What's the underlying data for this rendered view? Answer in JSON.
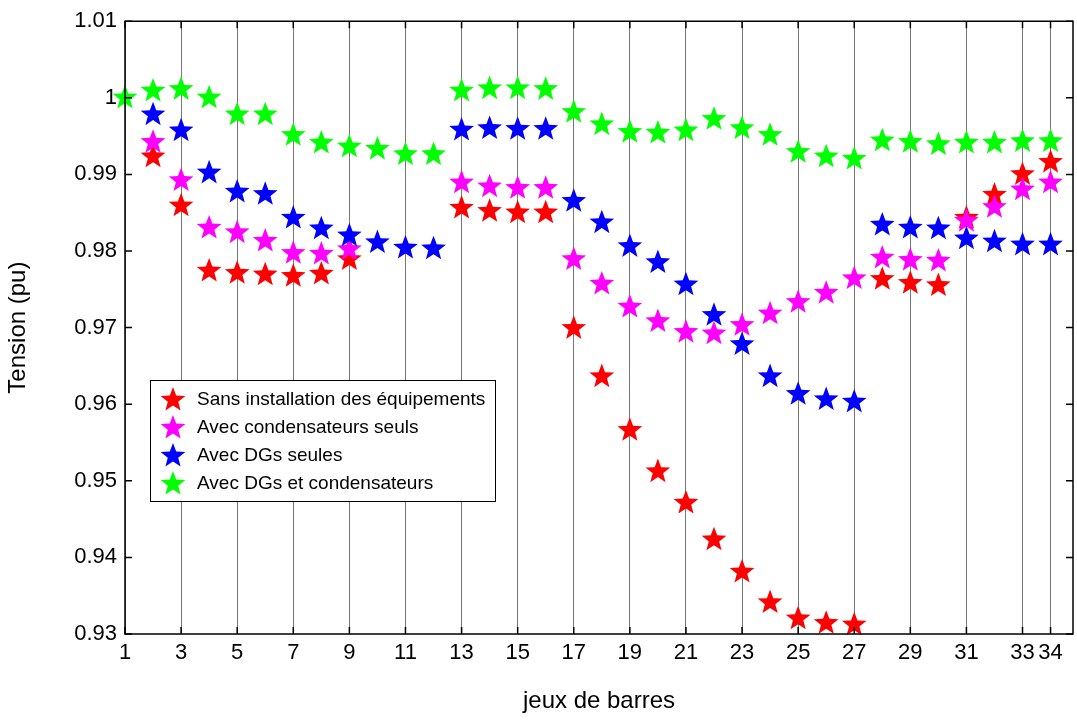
{
  "chart_data": {
    "type": "scatter",
    "xlabel": "jeux de barres",
    "ylabel": "Tension (pu)",
    "x": [
      1,
      2,
      3,
      4,
      5,
      6,
      7,
      8,
      9,
      10,
      11,
      12,
      13,
      14,
      15,
      16,
      17,
      18,
      19,
      20,
      21,
      22,
      23,
      24,
      25,
      26,
      27,
      28,
      29,
      30,
      31,
      32,
      33,
      34
    ],
    "series": [
      {
        "name": "Sans installation des équipements",
        "color": "#ff0000",
        "values": [
          null,
          0.9923,
          0.9859,
          0.9774,
          0.9771,
          0.9769,
          0.9767,
          0.977,
          0.9789,
          null,
          null,
          null,
          0.9856,
          0.9852,
          0.985,
          0.985,
          0.9699,
          0.9636,
          0.9566,
          0.9512,
          0.9471,
          0.9423,
          0.9381,
          0.9341,
          0.932,
          0.9314,
          0.9312,
          0.9763,
          0.9758,
          0.9755,
          0.9843,
          0.9873,
          0.99,
          0.9916
        ]
      },
      {
        "name": "Avec condensateurs seuls",
        "color": "#ff00ff",
        "values": [
          null,
          0.9942,
          0.9892,
          0.983,
          0.9824,
          0.9813,
          0.9797,
          0.9796,
          0.9802,
          null,
          null,
          null,
          0.9889,
          0.9884,
          0.9882,
          0.9882,
          0.9789,
          0.9757,
          0.9727,
          0.9708,
          0.9694,
          0.9692,
          0.9703,
          0.9718,
          0.9733,
          0.9745,
          0.9764,
          0.9791,
          0.9788,
          0.9787,
          0.9839,
          0.9857,
          0.988,
          0.9889
        ]
      },
      {
        "name": "Avec DGs seules",
        "color": "#0000ff",
        "values": [
          null,
          0.9978,
          0.9957,
          0.9902,
          0.9877,
          0.9874,
          0.9843,
          0.9829,
          0.982,
          0.9811,
          0.9804,
          0.9803,
          0.9958,
          0.996,
          0.9959,
          0.9959,
          0.9865,
          0.9837,
          0.9806,
          0.9785,
          0.9756,
          0.9716,
          0.9678,
          0.9636,
          0.9613,
          0.9606,
          0.9603,
          0.9834,
          0.983,
          0.9829,
          0.9816,
          0.9812,
          0.9808,
          0.9808
        ]
      },
      {
        "name": "Avec DGs et condensateurs",
        "color": "#00ff00",
        "values": [
          1.0,
          1.0009,
          1.0011,
          1.0,
          0.9978,
          0.9978,
          0.9951,
          0.9941,
          0.9936,
          0.9933,
          0.9926,
          0.9926,
          1.0009,
          1.0012,
          1.0012,
          1.0011,
          0.9981,
          0.9965,
          0.9955,
          0.9954,
          0.9957,
          0.9972,
          0.996,
          0.9951,
          0.9929,
          0.9923,
          0.992,
          0.9944,
          0.9942,
          0.9939,
          0.9941,
          0.9941,
          0.9943,
          0.9943
        ]
      }
    ],
    "xlim": [
      1,
      34.8
    ],
    "xticks": [
      1,
      3,
      5,
      7,
      9,
      11,
      13,
      15,
      17,
      19,
      21,
      23,
      25,
      27,
      29,
      31,
      33,
      34
    ],
    "ylim": [
      0.93,
      1.01
    ],
    "yticks": [
      0.93,
      0.94,
      0.95,
      0.96,
      0.97,
      0.98,
      0.99,
      1,
      1.01
    ],
    "grid": "x",
    "legend": "center left",
    "marker": "star"
  }
}
